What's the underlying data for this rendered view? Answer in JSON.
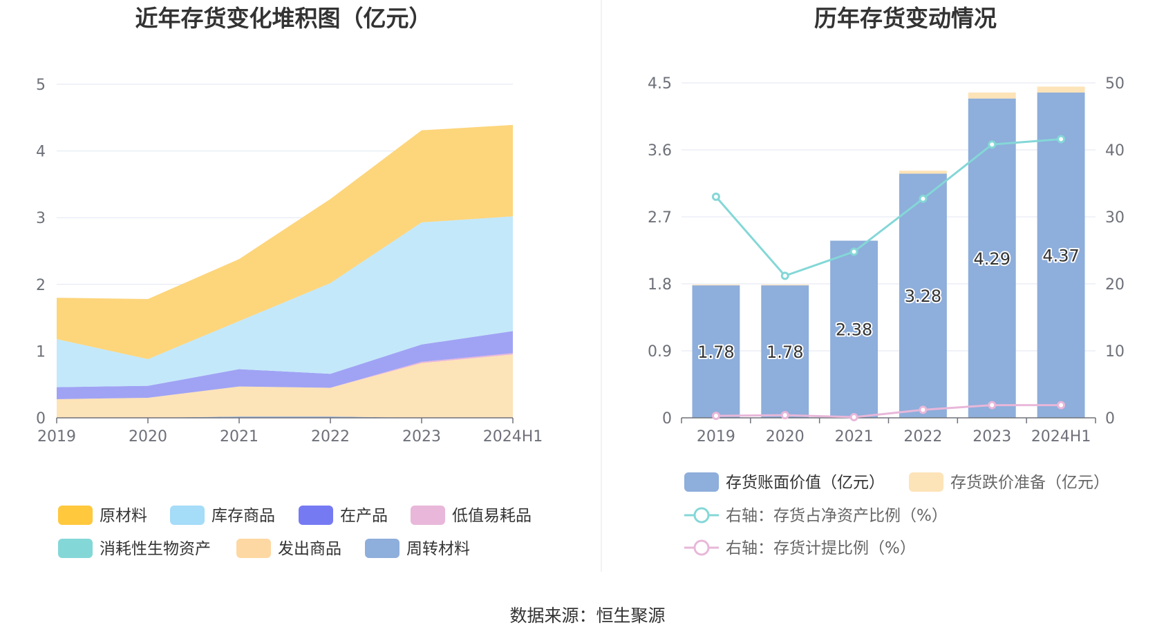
{
  "source_text": "数据来源：恒生聚源",
  "chart_data": [
    {
      "type": "area",
      "title": "近年存货变化堆积图（亿元）",
      "categories": [
        "2019",
        "2020",
        "2021",
        "2022",
        "2023",
        "2024H1"
      ],
      "y_ticks": [
        "0",
        "1",
        "2",
        "3",
        "4",
        "5"
      ],
      "ylim": [
        0,
        5
      ],
      "grid": true,
      "stacked": true,
      "legend_position": "bottom",
      "series": [
        {
          "name": "周转材料",
          "color": "#8eaedb",
          "values": [
            0.0,
            0.0,
            0.02,
            0.02,
            0.0,
            0.0
          ]
        },
        {
          "name": "发出商品",
          "color": "#fde3b8",
          "values": [
            0.28,
            0.3,
            0.45,
            0.43,
            0.82,
            0.95
          ]
        },
        {
          "name": "消耗性生物资产",
          "color": "#84d7d7",
          "values": [
            0.0,
            0.0,
            0.0,
            0.0,
            0.0,
            0.0
          ]
        },
        {
          "name": "低值易耗品",
          "color": "#e8b7d9",
          "values": [
            0.0,
            0.0,
            0.0,
            0.0,
            0.02,
            0.02
          ]
        },
        {
          "name": "在产品",
          "color": "#a0a3f4",
          "values": [
            0.18,
            0.18,
            0.26,
            0.21,
            0.26,
            0.33
          ]
        },
        {
          "name": "库存商品",
          "color": "#c3e8fa",
          "values": [
            0.72,
            0.4,
            0.72,
            1.36,
            1.83,
            1.72
          ]
        },
        {
          "name": "原材料",
          "color": "#fdd57b",
          "values": [
            0.62,
            0.9,
            0.93,
            1.26,
            1.38,
            1.37
          ]
        }
      ],
      "legend": [
        {
          "name": "原材料",
          "color": "#ffc83d"
        },
        {
          "name": "库存商品",
          "color": "#a5dcf8"
        },
        {
          "name": "在产品",
          "color": "#767af2"
        },
        {
          "name": "低值易耗品",
          "color": "#e8b7d9"
        },
        {
          "name": "消耗性生物资产",
          "color": "#84d7d7"
        },
        {
          "name": "发出商品",
          "color": "#fdd8a2"
        },
        {
          "name": "周转材料",
          "color": "#8eaedb"
        }
      ]
    },
    {
      "type": "bar",
      "title": "历年存货变动情况",
      "categories": [
        "2019",
        "2020",
        "2021",
        "2022",
        "2023",
        "2024H1"
      ],
      "y_left_ticks": [
        "0",
        "0.9",
        "1.8",
        "2.7",
        "3.6",
        "4.5"
      ],
      "y_right_ticks": [
        "0",
        "10",
        "20",
        "30",
        "40",
        "50"
      ],
      "ylim_left": [
        0,
        4.5
      ],
      "ylim_right": [
        0,
        50
      ],
      "grid": true,
      "legend_position": "bottom",
      "bar_series": [
        {
          "name": "存货账面价值（亿元）",
          "color": "#8eaedb",
          "values": [
            1.78,
            1.78,
            2.38,
            3.28,
            4.29,
            4.37
          ],
          "labels": [
            "1.78",
            "1.78",
            "2.38",
            "3.28",
            "4.29",
            "4.37"
          ]
        },
        {
          "name": "存货跌价准备（亿元）",
          "color": "#fde3b8",
          "values": [
            0.01,
            0.01,
            0.0,
            0.04,
            0.08,
            0.08
          ]
        }
      ],
      "line_series": [
        {
          "name": "右轴：存货占净资产比例（%）",
          "color": "#84d7d7",
          "axis": "right",
          "values": [
            33.0,
            21.2,
            24.8,
            32.7,
            40.8,
            41.6
          ]
        },
        {
          "name": "右轴：存货计提比例（%）",
          "color": "#e8b7d9",
          "axis": "right",
          "values": [
            0.3,
            0.4,
            0.1,
            1.2,
            1.9,
            1.9
          ]
        }
      ]
    }
  ]
}
